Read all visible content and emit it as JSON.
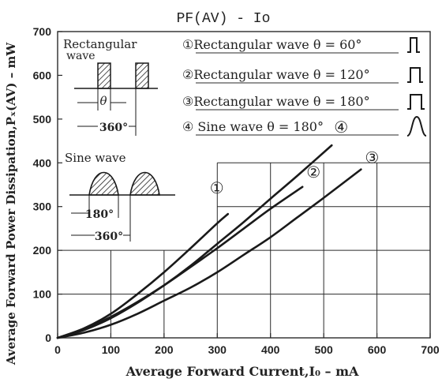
{
  "chart_data": {
    "type": "line",
    "title": "PF(AV) - Io",
    "xlabel": "Average Forward Current,I₀ – mA",
    "ylabel": "Average Forward Power Dissipation,Pₓ(AV) – mW",
    "xlim": [
      0,
      700
    ],
    "ylim": [
      0,
      700
    ],
    "xticks": [
      0,
      100,
      200,
      300,
      400,
      500,
      600,
      700
    ],
    "yticks": [
      0,
      100,
      200,
      300,
      400,
      500,
      600,
      700
    ],
    "grid": true,
    "series": [
      {
        "name": "①Rectangular wave θ = 60°",
        "marker": "①",
        "x": [
          0,
          50,
          100,
          150,
          200,
          250,
          300,
          320
        ],
        "y": [
          0,
          22,
          55,
          100,
          150,
          205,
          262,
          283
        ]
      },
      {
        "name": "②Rectangular wave θ = 120°",
        "marker": "②",
        "x": [
          0,
          50,
          100,
          150,
          200,
          250,
          300,
          350,
          400,
          460
        ],
        "y": [
          0,
          20,
          48,
          82,
          120,
          162,
          205,
          250,
          295,
          345
        ]
      },
      {
        "name": "③Rectangular wave θ = 180°",
        "marker": "③",
        "x": [
          0,
          50,
          100,
          150,
          200,
          250,
          300,
          350,
          400,
          450,
          500,
          570
        ],
        "y": [
          0,
          12,
          30,
          55,
          85,
          115,
          150,
          190,
          230,
          275,
          320,
          385
        ]
      },
      {
        "name": "④ Sine wave θ = 180°",
        "marker": "④",
        "x": [
          0,
          50,
          100,
          150,
          200,
          250,
          300,
          350,
          400,
          450,
          515
        ],
        "y": [
          0,
          18,
          45,
          80,
          120,
          165,
          215,
          265,
          318,
          370,
          440
        ]
      }
    ],
    "legend_position": "top-right"
  },
  "insets": {
    "rect": {
      "title_line1": "Rectangular",
      "title_line2": "wave",
      "theta_label": "θ",
      "period_label": "360°"
    },
    "sine": {
      "title": "Sine wave",
      "half_label": "180°",
      "period_label": "360°"
    }
  },
  "colors": {
    "line": "#1a1a1a",
    "grid": "#2a2a2a",
    "background": "#ffffff"
  }
}
